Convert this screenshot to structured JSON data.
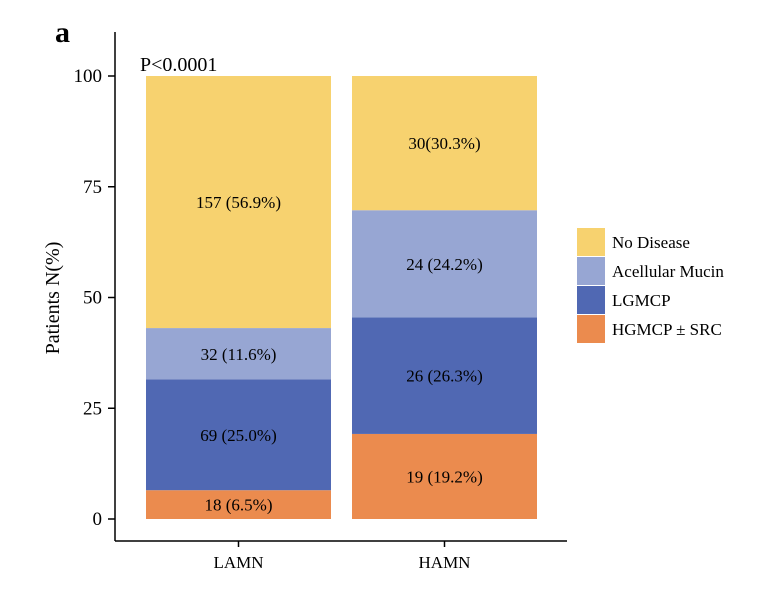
{
  "panel_label": "a",
  "chart_data": {
    "type": "bar",
    "stacked": true,
    "title": "",
    "annotation": "P<0.0001",
    "xlabel": "",
    "ylabel": "Patients N(%)",
    "ylim": [
      0,
      100
    ],
    "yticks": [
      0,
      25,
      50,
      75,
      100
    ],
    "categories": [
      "LAMN",
      "HAMN"
    ],
    "series": [
      {
        "name": "HGMCP ± SRC",
        "color": "#EB8B4E",
        "values": [
          6.5,
          19.2
        ],
        "labels": [
          "18 (6.5%)",
          "19 (19.2%)"
        ]
      },
      {
        "name": "LGMCP",
        "color": "#5068B3",
        "values": [
          25.0,
          26.3
        ],
        "labels": [
          "69 (25.0%)",
          "26 (26.3%)"
        ]
      },
      {
        "name": "Acellular Mucin",
        "color": "#97A6D3",
        "values": [
          11.6,
          24.2
        ],
        "labels": [
          "32 (11.6%)",
          "24 (24.2%)"
        ]
      },
      {
        "name": "No Disease",
        "color": "#F7D26F",
        "values": [
          56.9,
          30.3
        ],
        "labels": [
          "157 (56.9%)",
          "30(30.3%)"
        ]
      }
    ],
    "legend": {
      "position": "right",
      "order": [
        "No Disease",
        "Acellular Mucin",
        "LGMCP",
        "HGMCP ± SRC"
      ]
    }
  }
}
